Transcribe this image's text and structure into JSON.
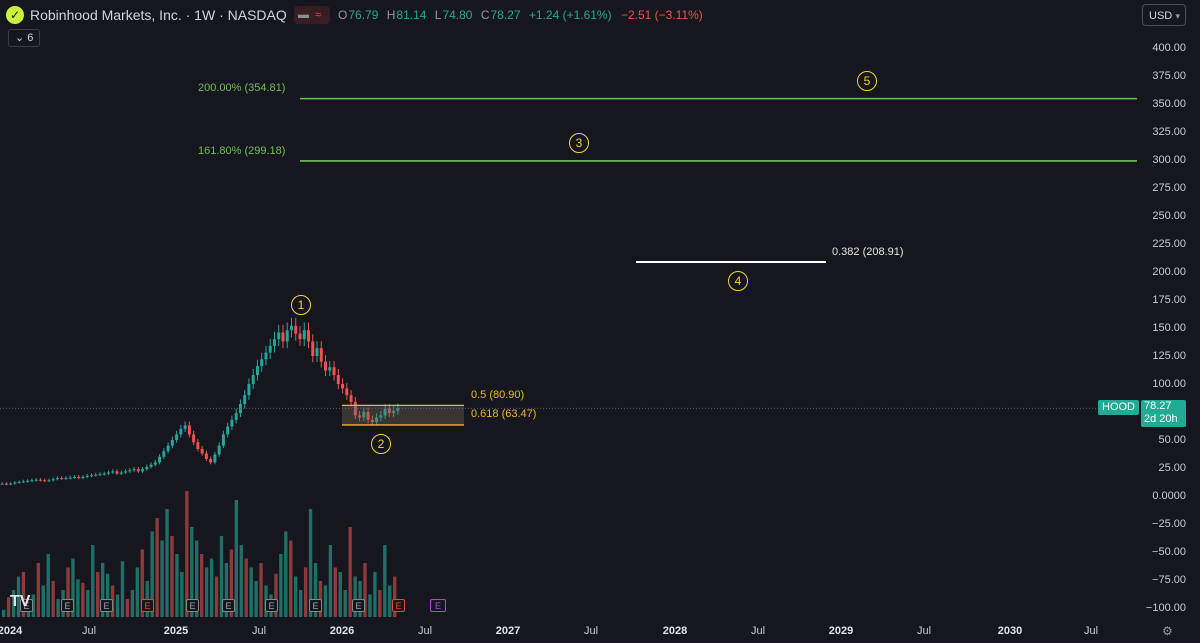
{
  "header": {
    "logo_glyph": "✓",
    "title": "Robinhood Markets, Inc. · 1W · NASDAQ",
    "ohlc": {
      "o_label": "O",
      "o_value": "76.79",
      "h_label": "H",
      "h_value": "81.14",
      "l_label": "L",
      "l_value": "74.80",
      "c_label": "C",
      "c_value": "78.27",
      "change": "+1.24 (+1.61%)",
      "change_after": "−2.51 (−3.11%)"
    },
    "indicator_count": "6",
    "currency": "USD"
  },
  "price_axis": {
    "ticks": [
      "400.00",
      "375.00",
      "350.00",
      "325.00",
      "300.00",
      "275.00",
      "250.00",
      "225.00",
      "200.00",
      "175.00",
      "150.00",
      "125.00",
      "100.00",
      "50.00",
      "25.00",
      "0.0000",
      "−25.00",
      "−50.00",
      "−75.00",
      "−100.00"
    ],
    "last_price": {
      "symbol": "HOOD",
      "price": "78.27",
      "countdown": "2d 20h",
      "color": "#22ab94"
    }
  },
  "time_axis": {
    "ticks": [
      {
        "label": "2024",
        "year": true
      },
      {
        "label": "Jul",
        "year": false
      },
      {
        "label": "2025",
        "year": true
      },
      {
        "label": "Jul",
        "year": false
      },
      {
        "label": "2026",
        "year": true
      },
      {
        "label": "Jul",
        "year": false
      },
      {
        "label": "2027",
        "year": true
      },
      {
        "label": "Jul",
        "year": false
      },
      {
        "label": "2028",
        "year": true
      },
      {
        "label": "Jul",
        "year": false
      },
      {
        "label": "2029",
        "year": true
      },
      {
        "label": "Jul",
        "year": false
      },
      {
        "label": "2030",
        "year": true
      },
      {
        "label": "Jul",
        "year": false
      }
    ]
  },
  "drawings": {
    "fib_extensions": [
      {
        "label": "200.00% (354.81)",
        "price": 354.81,
        "color": "#6fbf59"
      },
      {
        "label": "161.80% (299.18)",
        "price": 299.18,
        "color": "#6fbf59"
      }
    ],
    "fib_white": {
      "label": "0.382 (208.91)",
      "price": 208.91,
      "color": "#ffffff"
    },
    "retracement_zone": [
      {
        "label": "0.5 (80.90)",
        "price": 80.9,
        "color": "#f0b52a"
      },
      {
        "label": "0.618 (63.47)",
        "price": 63.47,
        "color": "#f0b52a"
      }
    ],
    "waves": [
      {
        "label": "1",
        "glyph": "①",
        "price": 153
      },
      {
        "label": "2",
        "glyph": "②",
        "price": 60
      },
      {
        "label": "3",
        "glyph": "③",
        "price": 310
      },
      {
        "label": "4",
        "glyph": "④",
        "price": 192
      },
      {
        "label": "5",
        "glyph": "⑤",
        "price": 365
      }
    ],
    "wave_color": "#f2d43a"
  },
  "earnings_markers": {
    "glyph": "E",
    "count": 9,
    "future_count": 1
  },
  "watermark": "TV",
  "icons": {
    "settings": "gear-icon",
    "chevron": "chevron-down-icon",
    "logo": "robinhood-feather-icon"
  },
  "colors": {
    "up": "#26a69a",
    "down": "#ef5350",
    "background": "#16171e",
    "fib_green": "#6fbf59",
    "fib_orange": "#f0b52a"
  },
  "chart_data": {
    "type": "candlestick",
    "title": "Robinhood Markets, Inc. · 1W · NASDAQ",
    "ylim": [
      -100,
      400
    ],
    "xlabel": "",
    "ylabel": "",
    "series": [
      {
        "name": "HOOD",
        "approx_weekly_close_path": [
          11,
          10.5,
          11,
          12,
          12.5,
          13,
          13.5,
          14,
          14.5,
          14,
          13.5,
          14,
          15,
          16,
          15.5,
          16,
          16.5,
          17,
          16,
          17,
          18,
          18.5,
          19,
          19.5,
          20,
          21,
          22,
          20,
          21,
          22,
          23,
          24,
          22,
          24,
          26,
          28,
          30,
          35,
          40,
          45,
          50,
          55,
          60,
          63,
          55,
          48,
          42,
          38,
          33,
          30,
          37,
          45,
          55,
          62,
          68,
          74,
          82,
          90,
          100,
          108,
          116,
          122,
          128,
          134,
          140,
          146,
          138,
          148,
          152,
          145,
          140,
          148,
          138,
          125,
          132,
          120,
          112,
          115,
          108,
          100,
          96,
          90,
          84,
          72,
          70,
          75,
          68,
          66,
          70,
          72,
          78,
          74,
          76,
          78.27
        ]
      }
    ],
    "volume": {
      "unit": "relative",
      "approx_bars": [
        8,
        22,
        30,
        45,
        50,
        18,
        25,
        60,
        35,
        70,
        40,
        20,
        30,
        55,
        65,
        42,
        38,
        30,
        80,
        50,
        60,
        48,
        35,
        25,
        62,
        20,
        30,
        55,
        75,
        40,
        95,
        110,
        85,
        120,
        90,
        70,
        50,
        140,
        100,
        85,
        70,
        55,
        65,
        45,
        90,
        60,
        75,
        130,
        80,
        65,
        55,
        40,
        60,
        35,
        25,
        48,
        70,
        95,
        85,
        45,
        30,
        55,
        120,
        60,
        40,
        35,
        80,
        55,
        50,
        30,
        100,
        45,
        40,
        60,
        25,
        50,
        30,
        80,
        35,
        45
      ]
    }
  }
}
